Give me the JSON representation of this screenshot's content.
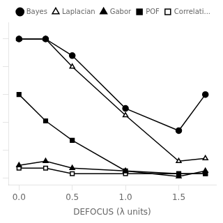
{
  "chart_data": {
    "type": "line",
    "xlabel": "DEFOCUS (λ units)",
    "x": [
      0,
      0.25,
      0.5,
      1.0,
      1.5,
      1.75
    ],
    "series": [
      {
        "name": "Bayes",
        "color": "#000000",
        "marker": "circle",
        "values": [
          1.0,
          1.0,
          0.88,
          0.5,
          0.34,
          0.6
        ]
      },
      {
        "name": "Laplacian",
        "color": "#000000",
        "marker": "triangle-open",
        "values": [
          1.0,
          1.0,
          0.8,
          0.45,
          0.12,
          0.14
        ]
      },
      {
        "name": "Gabor",
        "color": "#000000",
        "marker": "triangle",
        "values": [
          0.09,
          0.12,
          0.07,
          0.05,
          0.01,
          0.05
        ]
      },
      {
        "name": "POF",
        "color": "#000000",
        "marker": "square",
        "values": [
          0.6,
          0.41,
          0.27,
          0.05,
          0.03,
          0.03
        ]
      },
      {
        "name": "Correlati...",
        "color": "#000000",
        "marker": "square-open",
        "values": [
          0.07,
          0.07,
          0.03,
          0.03,
          0.03,
          0.03
        ]
      }
    ],
    "xlim": [
      -0.1,
      1.85
    ],
    "ylim": [
      -0.05,
      1.12
    ],
    "xticks": [
      {
        "value": 0,
        "label": "0.0"
      },
      0.5,
      {
        "value": 1.0,
        "label": "1.0"
      },
      1.5
    ],
    "yticks": [
      0,
      0.2,
      0.4,
      0.6,
      0.8,
      1.0
    ],
    "grid": false,
    "legend": "upper right",
    "tick_labels": "x"
  }
}
